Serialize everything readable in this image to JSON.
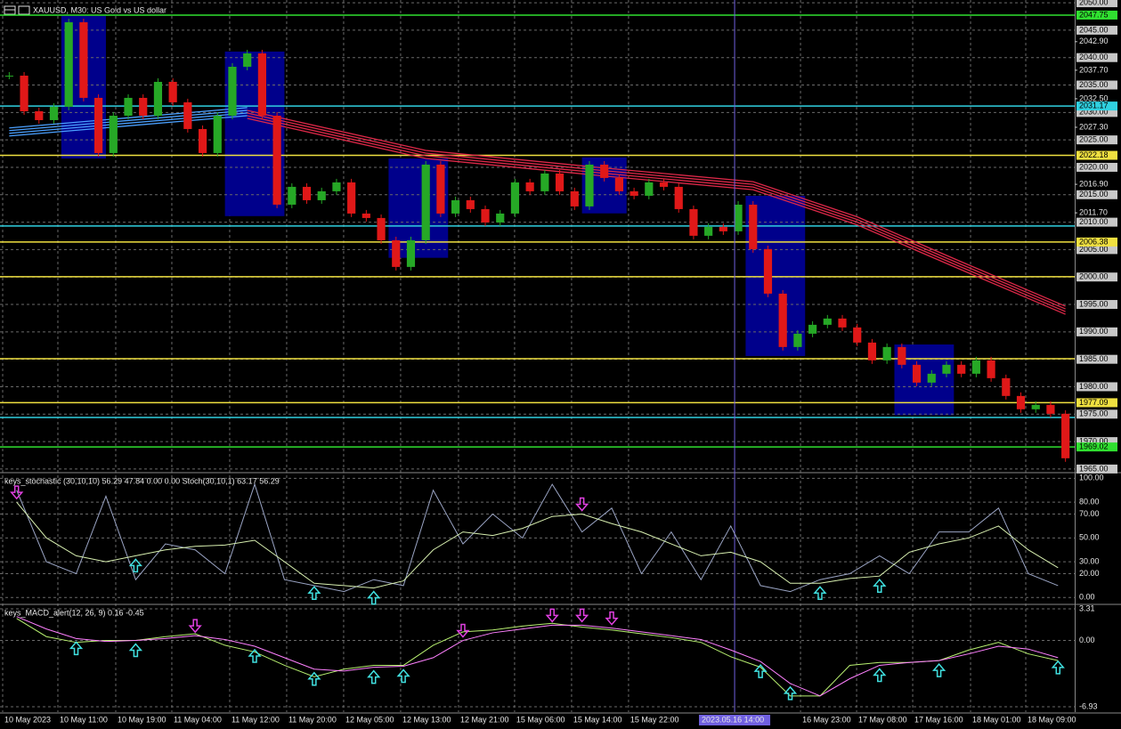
{
  "chart_data": [
    {
      "type": "candlestick",
      "title": "XAUUSD, M30: US Gold vs US dollar",
      "values": [
        2036.71,
        2030.22,
        2028.6,
        2031.04,
        2046.44,
        2032.66,
        2022.6,
        2029.41,
        2032.66,
        2029.41,
        2035.58,
        2031.85,
        2026.98,
        2022.6,
        2029.41,
        2038.33,
        2040.77,
        2029.41,
        2013.19,
        2016.44,
        2014.0,
        2015.63,
        2017.25,
        2011.57,
        2010.76,
        2006.7,
        2001.84,
        2006.7,
        2020.49,
        2011.57,
        2014.0,
        2012.38,
        2009.95,
        2011.57,
        2017.25,
        2015.63,
        2018.87,
        2015.63,
        2012.87,
        2020.49,
        2018.06,
        2015.63,
        2014.81,
        2017.25,
        2016.44,
        2012.38,
        2007.52,
        2009.14,
        2008.33,
        2013.19,
        2005.08,
        1996.97,
        1987.24,
        1989.67,
        1991.29,
        1992.43,
        1990.81,
        1988.05,
        1984.81,
        1987.24,
        1984.0,
        1980.75,
        1982.37,
        1984.0,
        1982.37,
        1984.81,
        1981.56,
        1978.32,
        1975.89,
        1976.7,
        1975.07,
        1966.96
      ],
      "up_color": "#26a826",
      "down_color": "#e01818",
      "ylim": [
        1964.5,
        2050.5
      ],
      "yticks": [
        {
          "value": 2050,
          "label": "2050.00"
        },
        {
          "value": 2045,
          "label": "2045.00"
        },
        {
          "value": 2040,
          "label": "2040.00"
        },
        {
          "value": 2035,
          "label": "2035.00"
        },
        {
          "value": 2030,
          "label": "2030.00"
        },
        {
          "value": 2025,
          "label": "2025.00"
        },
        {
          "value": 2020,
          "label": "2020.00"
        },
        {
          "value": 2015,
          "label": "2015.00"
        },
        {
          "value": 2010,
          "label": "2010.00"
        },
        {
          "value": 2005,
          "label": "2005.00"
        },
        {
          "value": 2000,
          "label": "2000.00"
        },
        {
          "value": 1995,
          "label": "1995.00"
        },
        {
          "value": 1990,
          "label": "1990.00"
        },
        {
          "value": 1985,
          "label": "1985.00"
        },
        {
          "value": 1980,
          "label": "1980.00"
        },
        {
          "value": 1975,
          "label": "1975.00"
        },
        {
          "value": 1970,
          "label": "1970.00"
        },
        {
          "value": 1965,
          "label": "1965.00"
        }
      ],
      "ylabels": [
        {
          "value": 2042.9,
          "label": "2042.90"
        },
        {
          "value": 2037.7,
          "label": "2037.70"
        },
        {
          "value": 2032.5,
          "label": "2032.50"
        },
        {
          "value": 2027.3,
          "label": "2027.30"
        },
        {
          "value": 2016.9,
          "label": "2016.90"
        },
        {
          "value": 2011.7,
          "label": "2011.70"
        }
      ],
      "levels": [
        {
          "value": 2009.3,
          "color": "#30d0e0"
        },
        {
          "value": 2000.05,
          "color": "#f0e040"
        },
        {
          "value": 1985.1,
          "color": "#f0e040"
        },
        {
          "value": 1974.4,
          "color": "#30d0e0"
        }
      ],
      "marked_levels": [
        {
          "value": 2047.75,
          "color": "#30e030"
        },
        {
          "value": 2031.17,
          "color": "#30d0e0"
        },
        {
          "value": 2022.18,
          "color": "#f0e040"
        },
        {
          "value": 2006.38,
          "color": "#f0e040"
        },
        {
          "value": 1977.09,
          "color": "#f0e040"
        },
        {
          "value": 1969.02,
          "color": "#30e030"
        }
      ],
      "moving_averages": [
        {
          "color": "#4aa0ff",
          "x": [
            0,
            16
          ],
          "values": [
            2026.2,
            2029.9
          ]
        },
        {
          "color": "#dc2848",
          "x": [
            16,
            28,
            40,
            50,
            57,
            64,
            71
          ],
          "values": [
            2029.4,
            2022.1,
            2018.9,
            2016.4,
            2010.0,
            2001.8,
            1993.7
          ]
        }
      ],
      "zones": [
        {
          "x": [
            4,
            6
          ],
          "y": [
            2021.6,
            2047.6
          ]
        },
        {
          "x": [
            15,
            18
          ],
          "y": [
            2011.1,
            2041.1
          ]
        },
        {
          "x": [
            26,
            29
          ],
          "y": [
            2003.5,
            2021.6
          ]
        },
        {
          "x": [
            39,
            41
          ],
          "y": [
            2011.6,
            2021.8
          ]
        },
        {
          "x": [
            50,
            53
          ],
          "y": [
            1985.6,
            2014.8
          ]
        },
        {
          "x": [
            60,
            63
          ],
          "y": [
            1974.8,
            1987.7
          ]
        }
      ],
      "zone_color": "#00008b",
      "xticks": [
        {
          "value": -0.44,
          "label": "10 May 2023"
        },
        {
          "value": 3.27,
          "label": "10 May 11:00"
        },
        {
          "value": 7.16,
          "label": "10 May 19:00"
        },
        {
          "value": 10.93,
          "label": "11 May 04:00"
        },
        {
          "value": 14.82,
          "label": "11 May 12:00"
        },
        {
          "value": 18.65,
          "label": "11 May 20:00"
        },
        {
          "value": 22.48,
          "label": "12 May 05:00"
        },
        {
          "value": 26.31,
          "label": "12 May 13:00"
        },
        {
          "value": 30.2,
          "label": "12 May 21:00"
        },
        {
          "value": 33.97,
          "label": "15 May 06:00"
        },
        {
          "value": 37.8,
          "label": "15 May 14:00"
        },
        {
          "value": 41.63,
          "label": "15 May 22:00"
        },
        {
          "value": 53.19,
          "label": "16 May 23:00"
        },
        {
          "value": 56.96,
          "label": "17 May 08:00"
        },
        {
          "value": 60.73,
          "label": "17 May 16:00"
        },
        {
          "value": 64.62,
          "label": "18 May 01:00"
        },
        {
          "value": 68.33,
          "label": "18 May 09:00"
        }
      ],
      "crosshair": {
        "value": 48.76,
        "label": "2023.05.16 14:00",
        "color": "#7060e0"
      },
      "grid": true
    },
    {
      "type": "line",
      "title": "keys_stochastic (30,10,10) 56.29 47.84 0.00 0.00 Stoch(30,10,1) 63.17 56.29",
      "series": [
        {
          "color": "#9aa4c4",
          "values": [
            90,
            30,
            20,
            85,
            15,
            45,
            40,
            20,
            95,
            15,
            10,
            5,
            15,
            10,
            90,
            45,
            70,
            50,
            95,
            55,
            75,
            20,
            55,
            15,
            60,
            10,
            5,
            15,
            20,
            35,
            20,
            55,
            55,
            75,
            20,
            10
          ]
        },
        {
          "color": "#d8f0b0",
          "values": [
            80,
            50,
            35,
            30,
            35,
            40,
            43,
            44,
            48,
            30,
            12,
            10,
            8,
            14,
            40,
            55,
            52,
            58,
            68,
            70,
            62,
            55,
            45,
            35,
            38,
            30,
            12,
            12,
            16,
            18,
            38,
            45,
            50,
            60,
            40,
            25
          ]
        }
      ],
      "ylim": [
        -5,
        104
      ],
      "yticks": [
        {
          "value": 100,
          "label": "100.00"
        },
        {
          "value": 80,
          "label": "80.00"
        },
        {
          "value": 70,
          "label": "70.00"
        },
        {
          "value": 50,
          "label": "50.00"
        },
        {
          "value": 30,
          "label": "30.00"
        },
        {
          "value": 20,
          "label": "20.00"
        },
        {
          "value": 0,
          "label": "0.00"
        }
      ],
      "buy": [
        4,
        10,
        12,
        27,
        29
      ],
      "sell": [
        0,
        19
      ],
      "buy_color": "#40e0e0",
      "sell_color": "#e040e0",
      "grid": true
    },
    {
      "type": "line",
      "title": "keys_MACD_alert(12, 26, 9) 0.16 -0.45",
      "series": [
        {
          "color": "#b8f070",
          "values": [
            2.3,
            0.4,
            -0.2,
            0,
            0,
            0.4,
            0.7,
            -0.5,
            -1.2,
            -2.6,
            -3.8,
            -3,
            -2.6,
            -2.6,
            -0.5,
            0.9,
            1.1,
            1.5,
            1.8,
            1.4,
            1.1,
            0.7,
            0.3,
            -0.2,
            -1.7,
            -2.8,
            -5.8,
            -5.8,
            -2.6,
            -2.3,
            -2.3,
            -2.1,
            -1,
            -0.2,
            -1.4,
            -2.1
          ]
        },
        {
          "color": "#ff80ff",
          "values": [
            2.5,
            1.2,
            0.2,
            -0.1,
            0,
            0.2,
            0.5,
            0.1,
            -0.6,
            -1.8,
            -3,
            -3.2,
            -2.8,
            -2.7,
            -1.8,
            0,
            0.8,
            1.2,
            1.6,
            1.6,
            1.3,
            0.9,
            0.5,
            0.1,
            -1,
            -2.2,
            -4.5,
            -5.8,
            -4,
            -2.6,
            -2.3,
            -2.1,
            -1.4,
            -0.6,
            -0.9,
            -1.8
          ]
        }
      ],
      "ylim": [
        -7.49,
        3.68
      ],
      "yticks": [
        3.31,
        {
          "value": 0,
          "label": "0.00"
        },
        -6.93
      ],
      "buy": [
        2,
        4,
        8,
        10,
        12,
        13,
        25,
        26,
        29,
        31,
        35
      ],
      "sell": [
        6,
        15,
        18,
        19,
        20
      ],
      "buy_color": "#40e0e0",
      "sell_color": "#e040e0",
      "grid": true
    }
  ]
}
